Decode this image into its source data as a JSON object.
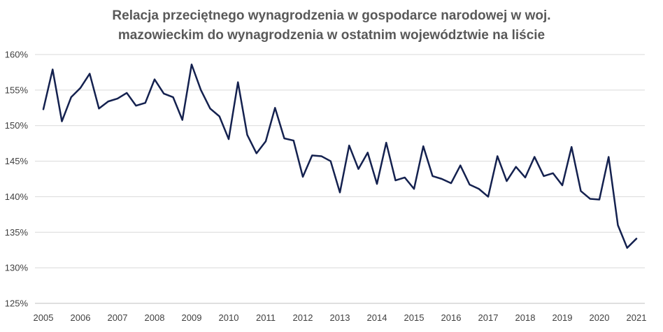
{
  "chart_data": {
    "type": "line",
    "title_line1": "Relacja przeciętnego wynagrodzenia w gospodarce narodowej w woj.",
    "title_line2": "mazowieckim do wynagrodzenia w ostatnim województwie na liście",
    "xlabel": "",
    "ylabel": "",
    "ylim": [
      125,
      160
    ],
    "yticks": [
      160,
      155,
      150,
      145,
      140,
      135,
      130,
      125
    ],
    "ytick_labels": [
      "160%",
      "155%",
      "150%",
      "145%",
      "140%",
      "135%",
      "130%",
      "125%"
    ],
    "xtick_labels": [
      "2005",
      "2006",
      "2007",
      "2008",
      "2009",
      "2010",
      "2011",
      "2012",
      "2013",
      "2014",
      "2015",
      "2016",
      "2017",
      "2018",
      "2019",
      "2020",
      "2021"
    ],
    "x_range": [
      2005,
      2021
    ],
    "grid": true,
    "legend": "none",
    "line_color": "#14214f",
    "series": [
      {
        "values": [
          152.3,
          157.9,
          150.6,
          154.0,
          155.3,
          157.3,
          152.4,
          153.4,
          153.8,
          154.6,
          152.8,
          153.2,
          156.5,
          154.5,
          154.0,
          150.8,
          158.6,
          155.0,
          152.4,
          151.3,
          148.1,
          156.1,
          148.7,
          146.1,
          147.8,
          152.5,
          148.2,
          147.9,
          142.8,
          145.8,
          145.7,
          145.0,
          140.6,
          147.2,
          143.9,
          146.2,
          141.8,
          147.6,
          142.3,
          142.7,
          141.1,
          147.1,
          142.9,
          142.5,
          141.9,
          144.4,
          141.7,
          141.1,
          140.0,
          145.7,
          142.2,
          144.2,
          142.7,
          145.6,
          142.9,
          143.3,
          141.6,
          147.0,
          140.8,
          139.7,
          139.6,
          145.6,
          136.0,
          132.8,
          134.1
        ]
      }
    ]
  }
}
